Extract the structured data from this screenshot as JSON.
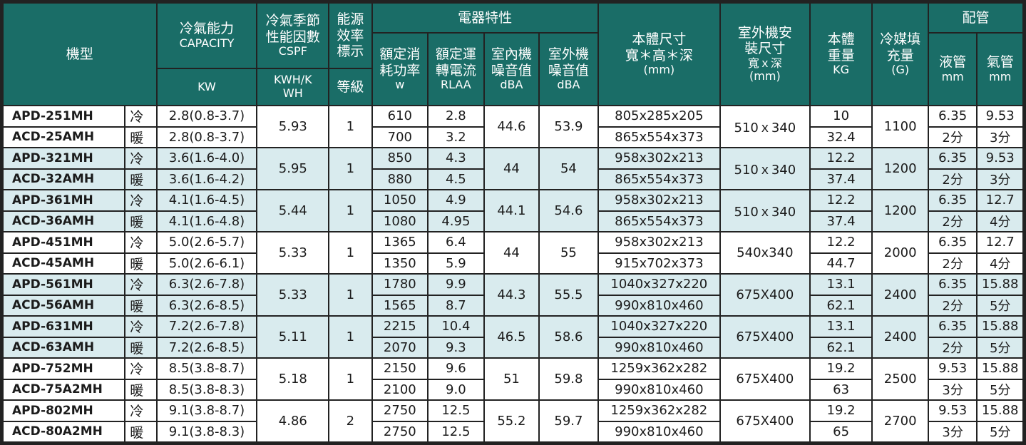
{
  "headers": {
    "model": "機型",
    "capacity_zh": "冷氣能力",
    "capacity_en": "CAPACITY",
    "capacity_unit": "KW",
    "cspf_zh": "冷氣季節性能因數",
    "cspf_en": "CSPF",
    "cspf_unit": "KWH/KWH",
    "efficiency_zh": "能源效率標示",
    "efficiency_unit": "等級",
    "electrical": "電器特性",
    "rated_power": "額定消耗功率",
    "rated_power_unit": "w",
    "rated_current": "額定運轉電流",
    "rated_current_unit": "RLAA",
    "indoor_noise": "室內機噪音值",
    "indoor_noise_unit": "dBA",
    "outdoor_noise": "室外機噪音值",
    "outdoor_noise_unit": "dBA",
    "body_size": "本體尺寸",
    "body_size_dims": "寬＊高＊深",
    "body_size_unit": "(mm)",
    "outdoor_install": "室外機安裝尺寸",
    "outdoor_install_dims": "寬ｘ深",
    "outdoor_install_unit": "(mm)",
    "weight": "本體重量",
    "weight_unit": "KG",
    "refrigerant": "冷媒填充量",
    "refrigerant_unit": "(G)",
    "piping": "配管",
    "liquid_pipe": "液管",
    "liquid_pipe_unit": "mm",
    "gas_pipe": "氣管",
    "gas_pipe_unit": "mm"
  },
  "groups": [
    {
      "indoor": "APD-251MH",
      "outdoor": "ACD-25AMH",
      "cool_capacity": "2.8(0.8-3.7)",
      "heat_capacity": "2.8(0.8-3.7)",
      "cspf": "5.93",
      "grade": "1",
      "power_cool": "610",
      "power_heat": "700",
      "current_cool": "2.8",
      "current_heat": "3.2",
      "indoor_noise": "44.6",
      "outdoor_noise": "53.9",
      "size_indoor": "805x285x205",
      "size_outdoor": "865x554x373",
      "install": "510ｘ340",
      "weight_indoor": "10",
      "weight_outdoor": "32.4",
      "refrigerant": "1100",
      "liquid_mm": "6.35",
      "gas_mm": "9.53",
      "liquid_fen": "2分",
      "gas_fen": "3分"
    },
    {
      "indoor": "APD-321MH",
      "outdoor": "ACD-32AMH",
      "cool_capacity": "3.6(1.6-4.0)",
      "heat_capacity": "3.6(1.6-4.2)",
      "cspf": "5.95",
      "grade": "1",
      "power_cool": "850",
      "power_heat": "880",
      "current_cool": "4.3",
      "current_heat": "4.5",
      "indoor_noise": "44",
      "outdoor_noise": "54",
      "size_indoor": "958x302x213",
      "size_outdoor": "865x554x373",
      "install": "510ｘ340",
      "weight_indoor": "12.2",
      "weight_outdoor": "37.4",
      "refrigerant": "1200",
      "liquid_mm": "6.35",
      "gas_mm": "9.53",
      "liquid_fen": "2分",
      "gas_fen": "3分"
    },
    {
      "indoor": "APD-361MH",
      "outdoor": "ACD-36AMH",
      "cool_capacity": "4.1(1.6-4.5)",
      "heat_capacity": "4.1(1.6-4.8)",
      "cspf": "5.44",
      "grade": "1",
      "power_cool": "1050",
      "power_heat": "1080",
      "current_cool": "4.9",
      "current_heat": "4.95",
      "indoor_noise": "44.1",
      "outdoor_noise": "54.6",
      "size_indoor": "958x302x213",
      "size_outdoor": "865x554x373",
      "install": "510ｘ340",
      "weight_indoor": "12.2",
      "weight_outdoor": "37.4",
      "refrigerant": "1200",
      "liquid_mm": "6.35",
      "gas_mm": "12.7",
      "liquid_fen": "2分",
      "gas_fen": "4分"
    },
    {
      "indoor": "APD-451MH",
      "outdoor": "ACD-45AMH",
      "cool_capacity": "5.0(2.6-5.7)",
      "heat_capacity": "5.0(2.6-6.1)",
      "cspf": "5.33",
      "grade": "1",
      "power_cool": "1365",
      "power_heat": "1350",
      "current_cool": "6.4",
      "current_heat": "5.9",
      "indoor_noise": "44",
      "outdoor_noise": "55",
      "size_indoor": "958x302x213",
      "size_outdoor": "915x702x373",
      "install": "540x340",
      "weight_indoor": "12.2",
      "weight_outdoor": "44.7",
      "refrigerant": "2000",
      "liquid_mm": "6.35",
      "gas_mm": "12.7",
      "liquid_fen": "2分",
      "gas_fen": "4分"
    },
    {
      "indoor": "APD-561MH",
      "outdoor": "ACD-56AMH",
      "cool_capacity": "6.3(2.6-7.8)",
      "heat_capacity": "6.3(2.6-8.5)",
      "cspf": "5.33",
      "grade": "1",
      "power_cool": "1780",
      "power_heat": "1565",
      "current_cool": "9.9",
      "current_heat": "8.7",
      "indoor_noise": "44.3",
      "outdoor_noise": "55.5",
      "size_indoor": "1040x327x220",
      "size_outdoor": "990x810x460",
      "install": "675X400",
      "weight_indoor": "13.1",
      "weight_outdoor": "62.1",
      "refrigerant": "2400",
      "liquid_mm": "6.35",
      "gas_mm": "15.88",
      "liquid_fen": "2分",
      "gas_fen": "5分"
    },
    {
      "indoor": "APD-631MH",
      "outdoor": "ACD-63AMH",
      "cool_capacity": "7.2(2.6-7.8)",
      "heat_capacity": "7.2(2.6-8.5)",
      "cspf": "5.11",
      "grade": "1",
      "power_cool": "2215",
      "power_heat": "2070",
      "current_cool": "10.4",
      "current_heat": "9.3",
      "indoor_noise": "46.5",
      "outdoor_noise": "58.6",
      "size_indoor": "1040x327x220",
      "size_outdoor": "990x810x460",
      "install": "675X400",
      "weight_indoor": "13.1",
      "weight_outdoor": "62.1",
      "refrigerant": "2400",
      "liquid_mm": "6.35",
      "gas_mm": "15.88",
      "liquid_fen": "2分",
      "gas_fen": "5分"
    },
    {
      "indoor": "APD-752MH",
      "outdoor": "ACD-75A2MH",
      "cool_capacity": "8.5(3.8-8.7)",
      "heat_capacity": "8.5(3.8-8.3)",
      "cspf": "5.18",
      "grade": "1",
      "power_cool": "2150",
      "power_heat": "2100",
      "current_cool": "9.6",
      "current_heat": "9.0",
      "indoor_noise": "51",
      "outdoor_noise": "59.8",
      "size_indoor": "1259x362x282",
      "size_outdoor": "990x810x460",
      "install": "675X400",
      "weight_indoor": "19.2",
      "weight_outdoor": "63",
      "refrigerant": "2500",
      "liquid_mm": "9.53",
      "gas_mm": "15.88",
      "liquid_fen": "3分",
      "gas_fen": "5分"
    },
    {
      "indoor": "APD-802MH",
      "outdoor": "ACD-80A2MH",
      "cool_capacity": "9.1(3.8-8.7)",
      "heat_capacity": "9.1(3.8-8.3)",
      "cspf": "4.86",
      "grade": "2",
      "power_cool": "2750",
      "power_heat": "2750",
      "current_cool": "12.5",
      "current_heat": "12.5",
      "indoor_noise": "55.2",
      "outdoor_noise": "59.7",
      "size_indoor": "1259x362x282",
      "size_outdoor": "990x810x460",
      "install": "675X400",
      "weight_indoor": "19.2",
      "weight_outdoor": "65",
      "refrigerant": "2700",
      "liquid_mm": "9.53",
      "gas_mm": "15.88",
      "liquid_fen": "3分",
      "gas_fen": "5分"
    }
  ],
  "mode_labels": {
    "cool": "冷",
    "heat": "暖"
  },
  "colors": {
    "header_bg": "#1a6d67",
    "header_text": "#ffffff",
    "row_shade": "#d9ebee",
    "row_plain": "#ffffff",
    "grid": "#222222"
  }
}
